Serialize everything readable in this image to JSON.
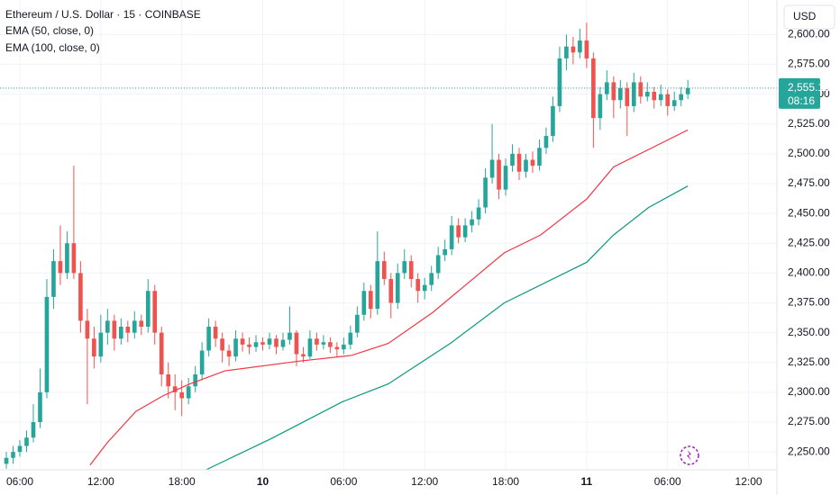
{
  "chart_data": {
    "type": "candlestick",
    "title": "Ethereum / U.S. Dollar · 15 · COINBASE",
    "currency": "USD",
    "last_price": {
      "value": 2555.12,
      "label": "2,555.12"
    },
    "countdown": "08:16",
    "up_color": "#26a69a",
    "down_color": "#ef5350",
    "xlim": [
      4.53,
      62.1
    ],
    "xticks": [
      {
        "value": 6,
        "label": "06:00"
      },
      {
        "value": 12,
        "label": "12:00"
      },
      {
        "value": 18,
        "label": "18:00"
      },
      {
        "value": 24,
        "label": "10"
      },
      {
        "value": 30,
        "label": "06:00"
      },
      {
        "value": 36,
        "label": "12:00"
      },
      {
        "value": 42,
        "label": "18:00"
      },
      {
        "value": 48,
        "label": "11"
      },
      {
        "value": 54,
        "label": "06:00"
      },
      {
        "value": 60,
        "label": "12:00"
      }
    ],
    "ylim": [
      2235,
      2629
    ],
    "yticks": [
      {
        "value": 2250,
        "label": "2,250.00"
      },
      {
        "value": 2275,
        "label": "2,275.00"
      },
      {
        "value": 2300,
        "label": "2,300.00"
      },
      {
        "value": 2325,
        "label": "2,325.00"
      },
      {
        "value": 2350,
        "label": "2,350.00"
      },
      {
        "value": 2375,
        "label": "2,375.00"
      },
      {
        "value": 2400,
        "label": "2,400.00"
      },
      {
        "value": 2425,
        "label": "2,425.00"
      },
      {
        "value": 2450,
        "label": "2,450.00"
      },
      {
        "value": 2475,
        "label": "2,475.00"
      },
      {
        "value": 2500,
        "label": "2,500.00"
      },
      {
        "value": 2525,
        "label": "2,525.00"
      },
      {
        "value": 2550,
        "label": "2,550.00"
      },
      {
        "value": 2575,
        "label": "2,575.00"
      },
      {
        "value": 2600,
        "label": "2,600.00"
      }
    ],
    "grid": true,
    "x": [
      5,
      5.5,
      6,
      6.5,
      7,
      7.5,
      8,
      8.5,
      9,
      9.5,
      10,
      10.5,
      11,
      11.5,
      12,
      12.5,
      13,
      13.5,
      14,
      14.5,
      15,
      15.5,
      16,
      16.5,
      17,
      17.5,
      18,
      18.5,
      19,
      19.5,
      20,
      20.5,
      21,
      21.5,
      22,
      22.5,
      23,
      23.5,
      24,
      24.5,
      25,
      25.5,
      26,
      26.5,
      27,
      27.5,
      28,
      28.5,
      29,
      29.5,
      30,
      30.5,
      31,
      31.5,
      32,
      32.5,
      33,
      33.5,
      34,
      34.5,
      35,
      35.5,
      36,
      36.5,
      37,
      37.5,
      38,
      38.5,
      39,
      39.5,
      40,
      40.5,
      41,
      41.5,
      42,
      42.5,
      43,
      43.5,
      44,
      44.5,
      45,
      45.5,
      46,
      46.5,
      47,
      47.5,
      48,
      48.5,
      49,
      49.5,
      50,
      50.5,
      51,
      51.5,
      52,
      52.5,
      53,
      53.5,
      54,
      54.5,
      55,
      55.5
    ],
    "open": [
      2240,
      2245,
      2250,
      2255,
      2262,
      2275,
      2300,
      2380,
      2410,
      2400,
      2425,
      2400,
      2360,
      2345,
      2330,
      2350,
      2360,
      2345,
      2355,
      2350,
      2360,
      2355,
      2385,
      2350,
      2315,
      2305,
      2300,
      2295,
      2305,
      2315,
      2335,
      2355,
      2345,
      2335,
      2330,
      2345,
      2340,
      2338,
      2342,
      2340,
      2345,
      2338,
      2344,
      2350,
      2332,
      2330,
      2345,
      2340,
      2342,
      2338,
      2336,
      2340,
      2350,
      2365,
      2385,
      2370,
      2410,
      2395,
      2375,
      2400,
      2410,
      2395,
      2385,
      2390,
      2400,
      2415,
      2420,
      2440,
      2430,
      2440,
      2445,
      2455,
      2480,
      2495,
      2470,
      2490,
      2500,
      2485,
      2495,
      2490,
      2505,
      2515,
      2540,
      2580,
      2590,
      2585,
      2595,
      2580,
      2530,
      2550,
      2560,
      2545,
      2555,
      2540,
      2560,
      2548,
      2552,
      2545,
      2550,
      2540,
      2545,
      2550
    ],
    "high": [
      2250,
      2255,
      2260,
      2268,
      2290,
      2320,
      2395,
      2420,
      2440,
      2435,
      2490,
      2410,
      2370,
      2355,
      2365,
      2370,
      2365,
      2362,
      2360,
      2368,
      2365,
      2395,
      2390,
      2355,
      2325,
      2315,
      2310,
      2312,
      2322,
      2342,
      2362,
      2360,
      2350,
      2340,
      2352,
      2350,
      2346,
      2348,
      2346,
      2350,
      2348,
      2350,
      2372,
      2352,
      2338,
      2352,
      2350,
      2348,
      2346,
      2342,
      2346,
      2356,
      2372,
      2392,
      2390,
      2435,
      2418,
      2400,
      2408,
      2420,
      2415,
      2400,
      2396,
      2406,
      2422,
      2428,
      2448,
      2446,
      2446,
      2452,
      2462,
      2488,
      2525,
      2500,
      2496,
      2508,
      2505,
      2500,
      2502,
      2512,
      2522,
      2548,
      2590,
      2600,
      2598,
      2605,
      2610,
      2585,
      2556,
      2570,
      2565,
      2562,
      2560,
      2568,
      2565,
      2560,
      2556,
      2558,
      2554,
      2552,
      2556,
      2562
    ],
    "low": [
      2236,
      2240,
      2246,
      2250,
      2258,
      2270,
      2295,
      2370,
      2390,
      2395,
      2395,
      2350,
      2290,
      2320,
      2325,
      2340,
      2335,
      2340,
      2342,
      2345,
      2348,
      2350,
      2340,
      2305,
      2295,
      2285,
      2280,
      2290,
      2300,
      2310,
      2330,
      2338,
      2325,
      2322,
      2326,
      2334,
      2332,
      2334,
      2335,
      2336,
      2332,
      2335,
      2340,
      2322,
      2325,
      2328,
      2335,
      2336,
      2333,
      2330,
      2332,
      2336,
      2346,
      2360,
      2362,
      2365,
      2390,
      2362,
      2370,
      2395,
      2388,
      2375,
      2378,
      2385,
      2395,
      2410,
      2415,
      2425,
      2426,
      2434,
      2440,
      2450,
      2475,
      2462,
      2465,
      2485,
      2478,
      2480,
      2484,
      2486,
      2500,
      2510,
      2535,
      2570,
      2575,
      2580,
      2572,
      2505,
      2520,
      2545,
      2530,
      2538,
      2515,
      2535,
      2542,
      2544,
      2538,
      2540,
      2532,
      2536,
      2540,
      2546
    ],
    "close": [
      2245,
      2250,
      2255,
      2262,
      2275,
      2300,
      2380,
      2410,
      2400,
      2425,
      2400,
      2360,
      2345,
      2330,
      2350,
      2360,
      2345,
      2355,
      2350,
      2360,
      2355,
      2385,
      2350,
      2315,
      2305,
      2300,
      2295,
      2305,
      2315,
      2335,
      2355,
      2345,
      2335,
      2330,
      2345,
      2340,
      2338,
      2342,
      2340,
      2345,
      2338,
      2344,
      2350,
      2332,
      2330,
      2345,
      2340,
      2342,
      2338,
      2336,
      2340,
      2350,
      2365,
      2385,
      2370,
      2410,
      2395,
      2375,
      2400,
      2410,
      2395,
      2385,
      2390,
      2400,
      2415,
      2420,
      2440,
      2430,
      2440,
      2445,
      2455,
      2480,
      2495,
      2470,
      2490,
      2500,
      2485,
      2495,
      2490,
      2505,
      2515,
      2540,
      2580,
      2590,
      2585,
      2595,
      2580,
      2530,
      2550,
      2560,
      2545,
      2555,
      2540,
      2560,
      2548,
      2552,
      2545,
      2550,
      2540,
      2545,
      2550,
      2555.12
    ],
    "series": [
      {
        "name": "EMA (50, close, 0)",
        "color": "#f23645",
        "x": [
          11.2,
          12.5,
          14.6,
          16.6,
          18.6,
          21.2,
          26.6,
          30.6,
          33.3,
          36.6,
          41.9,
          44.6,
          48,
          50,
          55.5
        ],
        "values": [
          2239,
          2258,
          2284,
          2297,
          2307,
          2318,
          2326,
          2331,
          2341,
          2367,
          2417,
          2432,
          2462,
          2489,
          2520
        ]
      },
      {
        "name": "EMA (100, close, 0)",
        "color": "#089981",
        "x": [
          19.8,
          24.6,
          29.9,
          33.3,
          37.9,
          41.9,
          48,
          50,
          52.6,
          55.5
        ],
        "values": [
          2235,
          2261,
          2292,
          2307,
          2341,
          2375,
          2409,
          2432,
          2455,
          2473
        ]
      }
    ]
  }
}
